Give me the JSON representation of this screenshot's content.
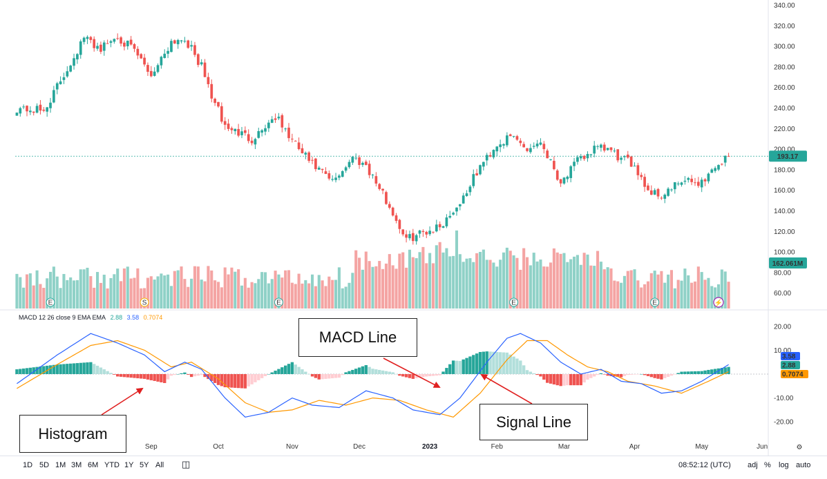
{
  "chart_data": [
    {
      "type": "candlestick",
      "panel": "price",
      "y_ticks": [
        "340.00",
        "320.00",
        "300.00",
        "280.00",
        "260.00",
        "240.00",
        "220.00",
        "200.00",
        "180.00",
        "160.00",
        "140.00",
        "120.00",
        "100.00",
        "80.00",
        "60.00"
      ],
      "ylim": [
        45,
        345
      ],
      "x_ticks": [
        "Sep",
        "Oct",
        "Nov",
        "Dec",
        "2023",
        "Feb",
        "Mar",
        "Apr",
        "May",
        "Jun"
      ],
      "last_price_label": "193.17",
      "volume_label": "162.061M",
      "colors": {
        "up": "#26a69a",
        "down": "#ef5350",
        "up_volume": "#8fd1c7",
        "down_volume": "#f4a4a3"
      },
      "close_path": [
        {
          "bar": 0,
          "close": 240
        },
        {
          "bar": 8,
          "close": 237
        },
        {
          "bar": 15,
          "close": 278
        },
        {
          "bar": 20,
          "close": 308
        },
        {
          "bar": 25,
          "close": 298
        },
        {
          "bar": 30,
          "close": 310
        },
        {
          "bar": 35,
          "close": 295
        },
        {
          "bar": 40,
          "close": 272
        },
        {
          "bar": 46,
          "close": 305
        },
        {
          "bar": 50,
          "close": 308
        },
        {
          "bar": 55,
          "close": 280
        },
        {
          "bar": 58,
          "close": 252
        },
        {
          "bar": 62,
          "close": 222
        },
        {
          "bar": 70,
          "close": 210
        },
        {
          "bar": 77,
          "close": 232
        },
        {
          "bar": 82,
          "close": 208
        },
        {
          "bar": 88,
          "close": 185
        },
        {
          "bar": 94,
          "close": 168
        },
        {
          "bar": 100,
          "close": 192
        },
        {
          "bar": 104,
          "close": 185
        },
        {
          "bar": 110,
          "close": 150
        },
        {
          "bar": 116,
          "close": 112
        },
        {
          "bar": 120,
          "close": 118
        },
        {
          "bar": 126,
          "close": 125
        },
        {
          "bar": 132,
          "close": 148
        },
        {
          "bar": 138,
          "close": 183
        },
        {
          "bar": 143,
          "close": 205
        },
        {
          "bar": 148,
          "close": 212
        },
        {
          "bar": 152,
          "close": 200
        },
        {
          "bar": 156,
          "close": 208
        },
        {
          "bar": 162,
          "close": 168
        },
        {
          "bar": 167,
          "close": 188
        },
        {
          "bar": 172,
          "close": 200
        },
        {
          "bar": 176,
          "close": 200
        },
        {
          "bar": 180,
          "close": 190
        },
        {
          "bar": 184,
          "close": 185
        },
        {
          "bar": 188,
          "close": 160
        },
        {
          "bar": 192,
          "close": 155
        },
        {
          "bar": 198,
          "close": 168
        },
        {
          "bar": 204,
          "close": 168
        },
        {
          "bar": 208,
          "close": 183
        },
        {
          "bar": 212,
          "close": 193.17
        }
      ]
    },
    {
      "type": "line",
      "panel": "macd",
      "indicator_label": "MACD 12 26 close 9 EMA EMA",
      "values_display": [
        "2.88",
        "3.58",
        "0.7074"
      ],
      "y_ticks": [
        "20.00",
        "10.00",
        "-10.00",
        "-20.00"
      ],
      "ylim": [
        -26,
        26
      ],
      "series": [
        {
          "name": "MACD",
          "color": "#2962ff",
          "points": [
            [
              0,
              -4
            ],
            [
              12,
              8
            ],
            [
              22,
              17
            ],
            [
              30,
              13
            ],
            [
              38,
              8
            ],
            [
              44,
              1
            ],
            [
              50,
              5
            ],
            [
              55,
              2
            ],
            [
              62,
              -10
            ],
            [
              68,
              -18
            ],
            [
              75,
              -16
            ],
            [
              82,
              -10
            ],
            [
              88,
              -13
            ],
            [
              96,
              -14
            ],
            [
              104,
              -7
            ],
            [
              112,
              -10
            ],
            [
              118,
              -15
            ],
            [
              126,
              -17
            ],
            [
              132,
              -10
            ],
            [
              140,
              5
            ],
            [
              146,
              15
            ],
            [
              150,
              17
            ],
            [
              156,
              13
            ],
            [
              162,
              5
            ],
            [
              168,
              0
            ],
            [
              174,
              2
            ],
            [
              180,
              -3
            ],
            [
              186,
              -4
            ],
            [
              192,
              -8
            ],
            [
              198,
              -7
            ],
            [
              204,
              -3
            ],
            [
              212,
              4
            ]
          ]
        },
        {
          "name": "Signal",
          "color": "#ff9800",
          "points": [
            [
              0,
              -6
            ],
            [
              12,
              4
            ],
            [
              22,
              12
            ],
            [
              30,
              14
            ],
            [
              38,
              10
            ],
            [
              46,
              3
            ],
            [
              52,
              5
            ],
            [
              60,
              -2
            ],
            [
              68,
              -12
            ],
            [
              75,
              -16
            ],
            [
              82,
              -15
            ],
            [
              90,
              -11
            ],
            [
              98,
              -13
            ],
            [
              106,
              -10
            ],
            [
              114,
              -11
            ],
            [
              122,
              -15
            ],
            [
              130,
              -18
            ],
            [
              138,
              -8
            ],
            [
              146,
              6
            ],
            [
              152,
              14
            ],
            [
              158,
              14
            ],
            [
              164,
              8
            ],
            [
              170,
              3
            ],
            [
              176,
              1
            ],
            [
              182,
              -3
            ],
            [
              190,
              -5
            ],
            [
              198,
              -8
            ],
            [
              206,
              -3
            ],
            [
              212,
              1
            ]
          ]
        }
      ],
      "histogram_colors": {
        "pos_strong": "#26a69a",
        "pos_weak": "#b2dfdb",
        "neg_strong": "#ef5350",
        "neg_weak": "#ffcdd2"
      },
      "macd_badge": "3.58",
      "signal_badge": "0.7074",
      "hist_badge": "2.88"
    }
  ],
  "annotations": {
    "macd_line": "MACD Line",
    "histogram": "Histogram",
    "signal_line": "Signal Line"
  },
  "toolbar": {
    "timeframes": [
      "1D",
      "5D",
      "1M",
      "3M",
      "6M",
      "YTD",
      "1Y",
      "5Y",
      "All"
    ],
    "clock": "08:52:12 (UTC)",
    "options": [
      "adj",
      "%",
      "log",
      "auto"
    ]
  },
  "event_markers": [
    "E",
    "S",
    "E",
    "E",
    "E"
  ]
}
